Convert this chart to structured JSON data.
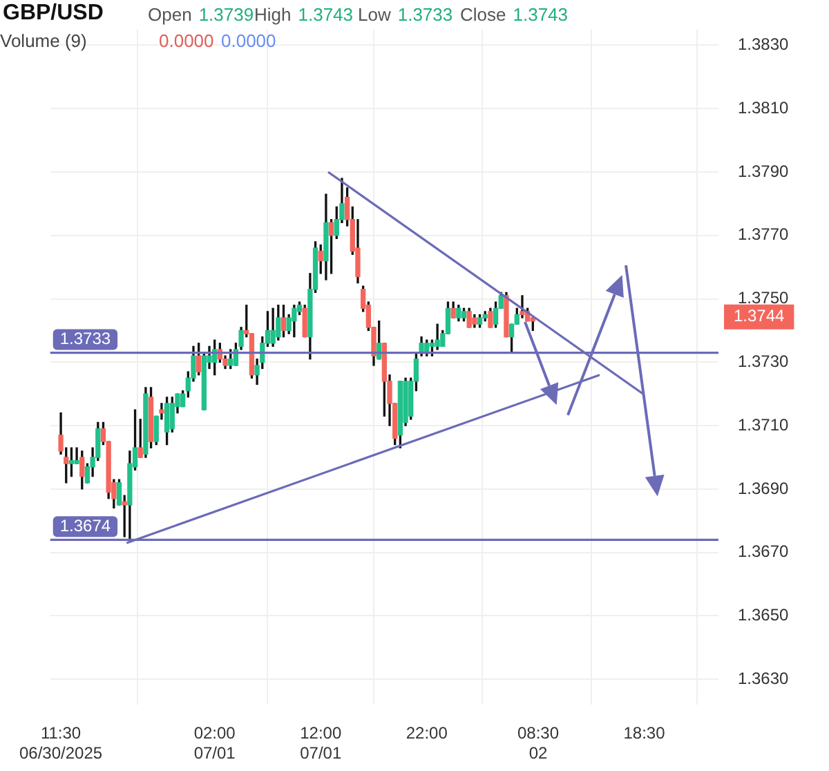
{
  "chart_data": {
    "type": "candlestick",
    "title": "GBP/USD",
    "annotations": [
      "Open 1.3739",
      "High 1.3743",
      "Low 1.3733",
      "Close 1.3743",
      "Volume (9)",
      "0.0000",
      "0.0000",
      "1.3744"
    ],
    "x": [
      "2025-06-30T11:30",
      "2025-06-30T12:00",
      "2025-06-30T12:30",
      "2025-06-30T13:00",
      "2025-06-30T13:30",
      "2025-06-30T14:00",
      "2025-06-30T14:30",
      "2025-06-30T15:00",
      "2025-06-30T15:30",
      "2025-06-30T16:00",
      "2025-06-30T16:30",
      "2025-06-30T17:00",
      "2025-06-30T17:30",
      "2025-06-30T18:00",
      "2025-06-30T18:30",
      "2025-06-30T19:00",
      "2025-06-30T19:30",
      "2025-06-30T20:00",
      "2025-06-30T20:30",
      "2025-06-30T21:00",
      "2025-06-30T21:30",
      "2025-06-30T22:00",
      "2025-06-30T22:30",
      "2025-06-30T23:00",
      "2025-06-30T23:30",
      "2025-07-01T00:00",
      "2025-07-01T00:30",
      "2025-07-01T01:00",
      "2025-07-01T01:30",
      "2025-07-01T02:00",
      "2025-07-01T02:30",
      "2025-07-01T03:00",
      "2025-07-01T03:30",
      "2025-07-01T04:00",
      "2025-07-01T04:30",
      "2025-07-01T05:00",
      "2025-07-01T05:30",
      "2025-07-01T06:00",
      "2025-07-01T06:30",
      "2025-07-01T07:00",
      "2025-07-01T07:30",
      "2025-07-01T08:00",
      "2025-07-01T08:30",
      "2025-07-01T09:00",
      "2025-07-01T09:30",
      "2025-07-01T10:00",
      "2025-07-01T10:30",
      "2025-07-01T11:00",
      "2025-07-01T11:30",
      "2025-07-01T12:00",
      "2025-07-01T12:30",
      "2025-07-01T13:00",
      "2025-07-01T13:30",
      "2025-07-01T14:00",
      "2025-07-01T14:30",
      "2025-07-01T15:00",
      "2025-07-01T15:30",
      "2025-07-01T16:00",
      "2025-07-01T16:30",
      "2025-07-01T17:00",
      "2025-07-01T17:30",
      "2025-07-01T18:00",
      "2025-07-01T18:30",
      "2025-07-01T19:00",
      "2025-07-01T19:30",
      "2025-07-01T20:00",
      "2025-07-01T20:30",
      "2025-07-01T21:00",
      "2025-07-01T21:30",
      "2025-07-01T22:00",
      "2025-07-01T22:30",
      "2025-07-01T23:00",
      "2025-07-01T23:30",
      "2025-07-02T00:00",
      "2025-07-02T00:30",
      "2025-07-02T01:00",
      "2025-07-02T01:30",
      "2025-07-02T02:00",
      "2025-07-02T02:30",
      "2025-07-02T03:00",
      "2025-07-02T03:30",
      "2025-07-02T04:00",
      "2025-07-02T04:30",
      "2025-07-02T05:00",
      "2025-07-02T05:30",
      "2025-07-02T06:00",
      "2025-07-02T06:30",
      "2025-07-02T07:00",
      "2025-07-02T07:30",
      "2025-07-02T08:00"
    ],
    "ohlc": [
      [
        1.3707,
        1.3714,
        1.3701,
        1.3702
      ],
      [
        1.37,
        1.3703,
        1.3692,
        1.3698
      ],
      [
        1.3698,
        1.3703,
        1.3694,
        1.3699
      ],
      [
        1.3698,
        1.3703,
        1.3698,
        1.3699
      ],
      [
        1.37,
        1.3702,
        1.369,
        1.3694
      ],
      [
        1.3692,
        1.3698,
        1.3692,
        1.3697
      ],
      [
        1.3697,
        1.3703,
        1.3694,
        1.37
      ],
      [
        1.37,
        1.3711,
        1.3699,
        1.3709
      ],
      [
        1.3709,
        1.3711,
        1.3704,
        1.3705
      ],
      [
        1.3705,
        1.3705,
        1.3687,
        1.3689
      ],
      [
        1.3692,
        1.3693,
        1.3684,
        1.3687
      ],
      [
        1.3685,
        1.3693,
        1.3685,
        1.3692
      ],
      [
        1.3686,
        1.3688,
        1.3675,
        1.3685
      ],
      [
        1.3685,
        1.3702,
        1.3674,
        1.3698
      ],
      [
        1.3697,
        1.3715,
        1.3696,
        1.3703
      ],
      [
        1.3703,
        1.3712,
        1.37,
        1.37
      ],
      [
        1.3701,
        1.3722,
        1.37,
        1.372
      ],
      [
        1.3719,
        1.3722,
        1.3703,
        1.3705
      ],
      [
        1.3705,
        1.3713,
        1.3704,
        1.3713
      ],
      [
        1.3715,
        1.3717,
        1.3712,
        1.3714
      ],
      [
        1.3708,
        1.3719,
        1.3704,
        1.3717
      ],
      [
        1.3709,
        1.3719,
        1.3708,
        1.3717
      ],
      [
        1.3716,
        1.372,
        1.3714,
        1.372
      ],
      [
        1.3716,
        1.3721,
        1.3716,
        1.372
      ],
      [
        1.3721,
        1.3727,
        1.3719,
        1.3725
      ],
      [
        1.3725,
        1.3735,
        1.3724,
        1.3732
      ],
      [
        1.3732,
        1.3736,
        1.3726,
        1.3727
      ],
      [
        1.3715,
        1.3733,
        1.3715,
        1.3732
      ],
      [
        1.373,
        1.3735,
        1.3728,
        1.3732
      ],
      [
        1.373,
        1.3737,
        1.3726,
        1.3734
      ],
      [
        1.3734,
        1.3736,
        1.373,
        1.3731
      ],
      [
        1.3731,
        1.3732,
        1.3728,
        1.3729
      ],
      [
        1.3729,
        1.3734,
        1.3728,
        1.3731
      ],
      [
        1.3729,
        1.3736,
        1.3729,
        1.3734
      ],
      [
        1.3735,
        1.3741,
        1.3734,
        1.374
      ],
      [
        1.374,
        1.3748,
        1.3738,
        1.3739
      ],
      [
        1.3739,
        1.3739,
        1.3725,
        1.3726
      ],
      [
        1.3726,
        1.3731,
        1.3723,
        1.3729
      ],
      [
        1.373,
        1.3738,
        1.3728,
        1.3736
      ],
      [
        1.3736,
        1.3746,
        1.3735,
        1.374
      ],
      [
        1.3736,
        1.3747,
        1.3735,
        1.374
      ],
      [
        1.3738,
        1.3748,
        1.3737,
        1.3744
      ],
      [
        1.3744,
        1.3748,
        1.3738,
        1.374
      ],
      [
        1.374,
        1.3745,
        1.3739,
        1.3744
      ],
      [
        1.3743,
        1.3748,
        1.3738,
        1.3747
      ],
      [
        1.3746,
        1.3749,
        1.3745,
        1.3748
      ],
      [
        1.3747,
        1.3748,
        1.3738,
        1.3738
      ],
      [
        1.3738,
        1.3758,
        1.3731,
        1.3753
      ],
      [
        1.3753,
        1.3768,
        1.3752,
        1.3766
      ],
      [
        1.3765,
        1.3767,
        1.3758,
        1.3762
      ],
      [
        1.3762,
        1.3783,
        1.3756,
        1.3774
      ],
      [
        1.3774,
        1.3775,
        1.3758,
        1.377
      ],
      [
        1.377,
        1.3779,
        1.3769,
        1.3775
      ],
      [
        1.3775,
        1.3788,
        1.3774,
        1.378
      ],
      [
        1.3782,
        1.3785,
        1.3773,
        1.3775
      ],
      [
        1.3775,
        1.3779,
        1.3764,
        1.3765
      ],
      [
        1.3766,
        1.3775,
        1.3755,
        1.3757
      ],
      [
        1.3753,
        1.3754,
        1.3746,
        1.3747
      ],
      [
        1.3748,
        1.3749,
        1.374,
        1.3741
      ],
      [
        1.3741,
        1.3741,
        1.3729,
        1.3732
      ],
      [
        1.3731,
        1.3743,
        1.3731,
        1.3736
      ],
      [
        1.3736,
        1.3736,
        1.3713,
        1.3724
      ],
      [
        1.3724,
        1.3726,
        1.371,
        1.3717
      ],
      [
        1.3717,
        1.3717,
        1.3704,
        1.3706
      ],
      [
        1.3707,
        1.3724,
        1.3703,
        1.3724
      ],
      [
        1.3711,
        1.3725,
        1.371,
        1.3724
      ],
      [
        1.3713,
        1.3725,
        1.3712,
        1.3724
      ],
      [
        1.3724,
        1.3733,
        1.3721,
        1.3731
      ],
      [
        1.3733,
        1.3738,
        1.3732,
        1.3736
      ],
      [
        1.3733,
        1.3737,
        1.3732,
        1.3736
      ],
      [
        1.3735,
        1.3737,
        1.3732,
        1.3736
      ],
      [
        1.3735,
        1.3742,
        1.3734,
        1.3737
      ],
      [
        1.3735,
        1.374,
        1.3735,
        1.3739
      ],
      [
        1.3739,
        1.3749,
        1.3739,
        1.3747
      ],
      [
        1.3747,
        1.3749,
        1.3744,
        1.3744
      ],
      [
        1.3744,
        1.3748,
        1.3743,
        1.3747
      ],
      [
        1.3744,
        1.3747,
        1.3743,
        1.3746
      ],
      [
        1.3746,
        1.3747,
        1.3741,
        1.3741
      ],
      [
        1.3744,
        1.3745,
        1.3741,
        1.3742
      ],
      [
        1.3742,
        1.3745,
        1.3741,
        1.3744
      ],
      [
        1.3744,
        1.3746,
        1.3743,
        1.3745
      ],
      [
        1.3746,
        1.3747,
        1.3741,
        1.3741
      ],
      [
        1.3742,
        1.3749,
        1.3741,
        1.3747
      ],
      [
        1.3747,
        1.3752,
        1.3747,
        1.3751
      ],
      [
        1.3751,
        1.3752,
        1.3738,
        1.3738
      ],
      [
        1.3738,
        1.3742,
        1.3733,
        1.3742
      ],
      [
        1.3742,
        1.3747,
        1.3742,
        1.3745
      ],
      [
        1.3746,
        1.3751,
        1.3744,
        1.3745
      ],
      [
        1.3746,
        1.3747,
        1.3743,
        1.3743
      ],
      [
        1.3744,
        1.3744,
        1.374,
        1.3743
      ]
    ],
    "colors": [
      "#f4665c",
      "#f4665c",
      "#22c08b",
      "#22c08b",
      "#f4665c",
      "#22c08b",
      "#22c08b",
      "#22c08b",
      "#f4665c",
      "#f4665c",
      "#f4665c",
      "#22c08b",
      "#f4665c",
      "#22c08b",
      "#22c08b",
      "#f4665c",
      "#22c08b",
      "#f4665c",
      "#22c08b",
      "#f4665c",
      "#22c08b",
      "#22c08b",
      "#22c08b",
      "#22c08b",
      "#22c08b",
      "#22c08b",
      "#f4665c",
      "#22c08b",
      "#22c08b",
      "#22c08b",
      "#f4665c",
      "#f4665c",
      "#22c08b",
      "#22c08b",
      "#22c08b",
      "#f4665c",
      "#f4665c",
      "#22c08b",
      "#22c08b",
      "#22c08b",
      "#22c08b",
      "#22c08b",
      "#f4665c",
      "#22c08b",
      "#22c08b",
      "#22c08b",
      "#f4665c",
      "#22c08b",
      "#22c08b",
      "#f4665c",
      "#22c08b",
      "#f4665c",
      "#22c08b",
      "#22c08b",
      "#f4665c",
      "#f4665c",
      "#f4665c",
      "#f4665c",
      "#f4665c",
      "#f4665c",
      "#22c08b",
      "#f4665c",
      "#f4665c",
      "#f4665c",
      "#22c08b",
      "#22c08b",
      "#22c08b",
      "#22c08b",
      "#22c08b",
      "#22c08b",
      "#22c08b",
      "#22c08b",
      "#22c08b",
      "#22c08b",
      "#f4665c",
      "#22c08b",
      "#22c08b",
      "#f4665c",
      "#f4665c",
      "#22c08b",
      "#22c08b",
      "#f4665c",
      "#22c08b",
      "#22c08b",
      "#f4665c",
      "#22c08b",
      "#22c08b",
      "#f4665c",
      "#f4665c",
      "#f4665c"
    ],
    "series": [
      {
        "type": "line",
        "x": [
          "2025-07-01T12:42",
          "2025-07-02T18:24"
        ],
        "values": [
          1.379,
          1.372
        ],
        "color": "#6b6bb8"
      },
      {
        "type": "line",
        "x": [
          "2025-06-30T17:42",
          "2025-07-02T14:18"
        ],
        "values": [
          1.3673,
          1.3726
        ],
        "color": "#6b6bb8"
      }
    ],
    "ref_lines": [
      {
        "axis": "y",
        "value": 1.3733,
        "label": "1.3733",
        "color": "#6b6bb8"
      },
      {
        "axis": "y",
        "value": 1.3674,
        "label": "1.3674",
        "color": "#6b6bb8"
      }
    ],
    "xlim": [
      "2025-06-30T10:30",
      "2025-07-03T01:30"
    ],
    "xticks": [
      {
        "value": "2025-06-30T11:30",
        "label": "11:30\n06/30/2025"
      },
      {
        "value": "2025-07-01T02:00",
        "label": "02:00\n07/01"
      },
      {
        "value": "2025-07-01T12:00",
        "label": "12:00\n07/01"
      },
      {
        "value": "2025-07-01T22:00",
        "label": "22:00"
      },
      {
        "value": "2025-07-02T08:30",
        "label": "08:30\n02"
      },
      {
        "value": "2025-07-02T18:30",
        "label": "18:30"
      }
    ],
    "ylim": [
      1.3622,
      1.3835
    ],
    "yticks": [
      {
        "value": 1.363,
        "label": "1.3630"
      },
      {
        "value": 1.365,
        "label": "1.3650"
      },
      {
        "value": 1.367,
        "label": "1.3670"
      },
      {
        "value": 1.369,
        "label": "1.3690"
      },
      {
        "value": 1.371,
        "label": "1.3710"
      },
      {
        "value": 1.373,
        "label": "1.3730"
      },
      {
        "value": 1.375,
        "label": "1.3750"
      },
      {
        "value": 1.377,
        "label": "1.3770"
      },
      {
        "value": 1.379,
        "label": "1.3790"
      },
      {
        "value": 1.381,
        "label": "1.3810"
      },
      {
        "value": 1.383,
        "label": "1.3830"
      }
    ],
    "grid": true
  }
}
